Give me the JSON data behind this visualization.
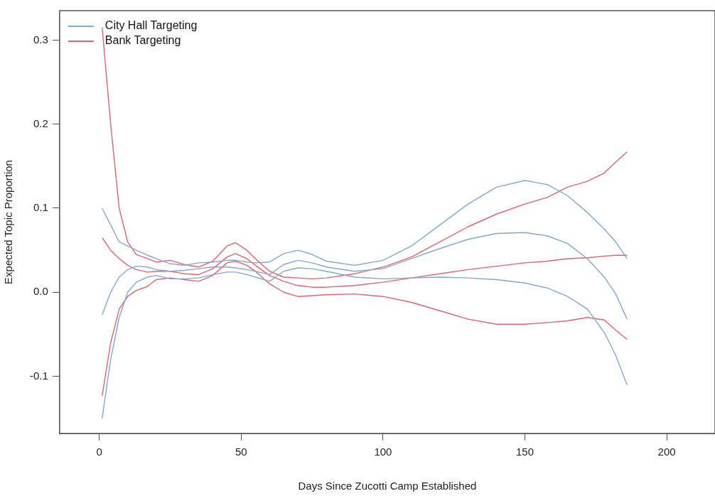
{
  "chart_data": {
    "type": "line",
    "xlabel": "Days Since Zucotti Camp Established",
    "ylabel": "Expected Topic Proportion",
    "x": [
      1,
      4,
      7,
      10,
      13,
      17,
      20,
      25,
      30,
      35,
      40,
      45,
      48,
      52,
      55,
      60,
      65,
      70,
      75,
      80,
      90,
      100,
      110,
      120,
      130,
      140,
      150,
      158,
      165,
      172,
      178,
      182,
      186
    ],
    "xlim": [
      -14,
      217
    ],
    "xticks": [
      0,
      50,
      100,
      150,
      200
    ],
    "ylim": [
      -0.168,
      0.335
    ],
    "yticks": [
      -0.1,
      {
        "value": 0,
        "label": "0.0"
      },
      0.1,
      0.2,
      0.3
    ],
    "grid": false,
    "legend": "top left",
    "series": [
      {
        "name": "City Hall Targeting",
        "color": "#7fa8d4",
        "values": [
          -0.027,
          0.0,
          0.018,
          0.027,
          0.031,
          0.03,
          0.027,
          0.025,
          0.026,
          0.028,
          0.03,
          0.03,
          0.029,
          0.027,
          0.025,
          0.021,
          0.033,
          0.038,
          0.035,
          0.03,
          0.025,
          0.028,
          0.04,
          0.052,
          0.063,
          0.07,
          0.071,
          0.067,
          0.058,
          0.04,
          0.018,
          -0.002,
          -0.032
        ]
      },
      {
        "color": "#7fa8d4",
        "values": [
          0.1,
          0.08,
          0.06,
          0.055,
          0.05,
          0.044,
          0.04,
          0.034,
          0.032,
          0.035,
          0.036,
          0.038,
          0.038,
          0.036,
          0.035,
          0.036,
          0.046,
          0.05,
          0.045,
          0.037,
          0.032,
          0.038,
          0.055,
          0.08,
          0.105,
          0.125,
          0.133,
          0.128,
          0.115,
          0.095,
          0.075,
          0.06,
          0.04
        ]
      },
      {
        "color": "#7fa8d4",
        "values": [
          -0.15,
          -0.08,
          -0.03,
          0.0,
          0.012,
          0.018,
          0.02,
          0.016,
          0.016,
          0.017,
          0.021,
          0.024,
          0.024,
          0.021,
          0.018,
          0.013,
          0.025,
          0.029,
          0.028,
          0.025,
          0.018,
          0.016,
          0.017,
          0.018,
          0.017,
          0.015,
          0.011,
          0.005,
          -0.005,
          -0.02,
          -0.048,
          -0.075,
          -0.11
        ]
      },
      {
        "name": "Bank Targeting",
        "color": "#e8606e",
        "values": [
          0.065,
          0.05,
          0.04,
          0.032,
          0.027,
          0.024,
          0.025,
          0.025,
          0.022,
          0.021,
          0.028,
          0.042,
          0.046,
          0.04,
          0.032,
          0.02,
          0.013,
          0.008,
          0.006,
          0.006,
          0.008,
          0.012,
          0.017,
          0.022,
          0.027,
          0.031,
          0.035,
          0.037,
          0.04,
          0.041,
          0.043,
          0.044,
          0.044
        ]
      },
      {
        "color": "#e8606e",
        "values": [
          0.315,
          0.2,
          0.1,
          0.06,
          0.045,
          0.04,
          0.036,
          0.038,
          0.033,
          0.03,
          0.037,
          0.055,
          0.059,
          0.05,
          0.04,
          0.025,
          0.018,
          0.017,
          0.016,
          0.017,
          0.022,
          0.03,
          0.042,
          0.06,
          0.078,
          0.093,
          0.105,
          0.113,
          0.125,
          0.132,
          0.142,
          0.155,
          0.167
        ]
      },
      {
        "color": "#e8606e",
        "values": [
          -0.123,
          -0.06,
          -0.02,
          -0.005,
          0.002,
          0.007,
          0.015,
          0.017,
          0.015,
          0.013,
          0.02,
          0.035,
          0.037,
          0.032,
          0.025,
          0.01,
          0.0,
          -0.005,
          -0.004,
          -0.003,
          -0.002,
          -0.005,
          -0.012,
          -0.022,
          -0.032,
          -0.038,
          -0.038,
          -0.036,
          -0.034,
          -0.03,
          -0.033,
          -0.045,
          -0.056
        ]
      }
    ]
  }
}
